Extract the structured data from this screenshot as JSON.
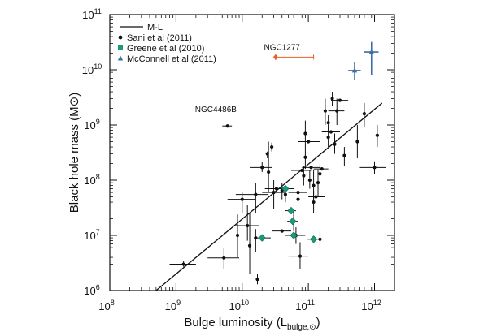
{
  "chart_data": {
    "type": "scatter",
    "xscale": "log",
    "yscale": "log",
    "xlim": [
      100000000,
      2000000000000
    ],
    "ylim": [
      1000000,
      100000000000
    ],
    "x_major_ticks": [
      {
        "value": 100000000,
        "base": "10",
        "exp": "8"
      },
      {
        "value": 1000000000,
        "base": "10",
        "exp": "9"
      },
      {
        "value": 10000000000,
        "base": "10",
        "exp": "10"
      },
      {
        "value": 100000000000,
        "base": "10",
        "exp": "11"
      },
      {
        "value": 1000000000000,
        "base": "10",
        "exp": "12"
      }
    ],
    "y_major_ticks": [
      {
        "value": 1000000,
        "base": "10",
        "exp": "6"
      },
      {
        "value": 10000000,
        "base": "10",
        "exp": "7"
      },
      {
        "value": 100000000,
        "base": "10",
        "exp": "8"
      },
      {
        "value": 1000000000,
        "base": "10",
        "exp": "9"
      },
      {
        "value": 10000000000,
        "base": "10",
        "exp": "10"
      },
      {
        "value": 100000000000,
        "base": "10",
        "exp": "11"
      }
    ],
    "xlabel": {
      "main": "Bulge luminosity (L",
      "sub": "bulge,⊙",
      "close": ")"
    },
    "ylabel": "Black hole mass (M⊙)",
    "legend_position": "top-left",
    "legend": [
      {
        "label": "M-L",
        "symbol": "line",
        "color": "#111111"
      },
      {
        "label": "Sani et al (2011)",
        "symbol": "dot",
        "color": "#111111"
      },
      {
        "label": "Greene et al (2010)",
        "symbol": "square",
        "color": "#1a9a7a"
      },
      {
        "label": "McConnell et al (2011)",
        "symbol": "triangle",
        "color": "#3b6ea5"
      }
    ],
    "fit_line": {
      "name": "M-L",
      "x": [
        500000000,
        1300000000000
      ],
      "y": [
        1000000,
        2500000000
      ]
    },
    "annotations": [
      {
        "text": "NGC1277",
        "x": 40000000000,
        "y": 20000000000
      },
      {
        "text": "NGC4486B",
        "x": 4000000000,
        "y": 1500000000
      }
    ],
    "series": [
      {
        "name": "Sani et al (2011)",
        "marker": "dot",
        "color": "#111111",
        "points": [
          {
            "x": 1300000000,
            "y": 3000000,
            "xlo": 800000000,
            "xhi": 2000000000,
            "ylo": 2700000,
            "yhi": 3400000
          },
          {
            "x": 5300000000,
            "y": 3900000,
            "xlo": 3000000000,
            "xhi": 9000000000,
            "ylo": 2500000,
            "yhi": 6000000
          },
          {
            "x": 6000000000,
            "y": 960000000,
            "xlo": 5000000000,
            "xhi": 7000000000,
            "ylo": 900000000,
            "yhi": 1020000000
          },
          {
            "x": 10000000000,
            "y": 45000000,
            "xlo": 6000000000,
            "xhi": 16000000000,
            "ylo": 25000000,
            "yhi": 60000000
          },
          {
            "x": 12000000000,
            "y": 15000000,
            "xlo": 8000000000,
            "xhi": 18000000000,
            "ylo": 8000000,
            "yhi": 35000000
          },
          {
            "x": 8500000000,
            "y": 10000000,
            "ylo": 4000000,
            "yhi": 24000000
          },
          {
            "x": 13000000000,
            "y": 6500000,
            "ylo": 2000000,
            "yhi": 25000000
          },
          {
            "x": 16000000000,
            "y": 9000000,
            "ylo": 5000000,
            "yhi": 13000000
          },
          {
            "x": 17000000000,
            "y": 1600000,
            "ylo": 1300000,
            "yhi": 2000000
          },
          {
            "x": 16000000000,
            "y": 55000000,
            "xlo": 8000000000,
            "xhi": 25000000000,
            "ylo": 25000000,
            "yhi": 90000000
          },
          {
            "x": 20000000000,
            "y": 170000000,
            "xlo": 13000000000,
            "xhi": 28000000000,
            "ylo": 140000000,
            "yhi": 210000000
          },
          {
            "x": 25000000000,
            "y": 140000000,
            "ylo": 60000000,
            "yhi": 500000000
          },
          {
            "x": 24000000000,
            "y": 300000000,
            "ylo": 250000000,
            "yhi": 330000000
          },
          {
            "x": 28000000000,
            "y": 400000000,
            "ylo": 330000000,
            "yhi": 480000000
          },
          {
            "x": 30000000000,
            "y": 60000000,
            "xlo": 20000000000,
            "xhi": 45000000000,
            "ylo": 30000000,
            "yhi": 100000000
          },
          {
            "x": 33000000000,
            "y": 70000000,
            "xlo": 22000000000,
            "xhi": 45000000000
          },
          {
            "x": 40000000000,
            "y": 65000000,
            "ylo": 45000000,
            "yhi": 90000000
          },
          {
            "x": 45000000000,
            "y": 55000000,
            "ylo": 40000000,
            "yhi": 75000000
          },
          {
            "x": 40000000000,
            "y": 12000000,
            "xlo": 28000000000,
            "xhi": 55000000000
          },
          {
            "x": 60000000000,
            "y": 18000000,
            "ylo": 12000000,
            "yhi": 28000000
          },
          {
            "x": 65000000000,
            "y": 10000000,
            "xlo": 45000000000,
            "xhi": 90000000000,
            "ylo": 7000000,
            "yhi": 14000000
          },
          {
            "x": 70000000000,
            "y": 45000000,
            "ylo": 30000000,
            "yhi": 70000000
          },
          {
            "x": 70000000000,
            "y": 60000000,
            "xlo": 50000000000,
            "xhi": 95000000000
          },
          {
            "x": 75000000000,
            "y": 4200000,
            "xlo": 50000000000,
            "xhi": 100000000000,
            "ylo": 2500000,
            "yhi": 7500000
          },
          {
            "x": 80000000000,
            "y": 150000000,
            "xlo": 55000000000,
            "xhi": 110000000000
          },
          {
            "x": 85000000000,
            "y": 120000000,
            "ylo": 80000000,
            "yhi": 180000000
          },
          {
            "x": 90000000000,
            "y": 260000000,
            "ylo": 160000000,
            "yhi": 400000000
          },
          {
            "x": 90000000000,
            "y": 700000000,
            "ylo": 400000000,
            "yhi": 1200000000
          },
          {
            "x": 100000000000,
            "y": 500000000,
            "xlo": 70000000000,
            "xhi": 150000000000
          },
          {
            "x": 105000000000,
            "y": 100000000,
            "ylo": 70000000,
            "yhi": 150000000
          },
          {
            "x": 110000000000,
            "y": 170000000,
            "xlo": 80000000000,
            "xhi": 150000000000
          },
          {
            "x": 120000000000,
            "y": 80000000,
            "ylo": 45000000,
            "yhi": 150000000
          },
          {
            "x": 120000000000,
            "y": 40000000,
            "ylo": 25000000,
            "yhi": 65000000
          },
          {
            "x": 130000000000,
            "y": 50000000,
            "xlo": 100000000000,
            "xhi": 180000000000
          },
          {
            "x": 140000000000,
            "y": 90000000,
            "ylo": 50000000,
            "yhi": 150000000
          },
          {
            "x": 150000000000,
            "y": 8500000,
            "ylo": 6000000,
            "yhi": 12000000
          },
          {
            "x": 150000000000,
            "y": 130000000,
            "ylo": 90000000,
            "yhi": 200000000
          },
          {
            "x": 160000000000,
            "y": 160000000,
            "xlo": 120000000000,
            "xhi": 200000000000
          },
          {
            "x": 180000000000,
            "y": 1800000000,
            "ylo": 1000000000,
            "yhi": 3000000000
          },
          {
            "x": 200000000000,
            "y": 600000000,
            "ylo": 400000000,
            "yhi": 900000000
          },
          {
            "x": 200000000000,
            "y": 1100000000,
            "ylo": 800000000,
            "yhi": 1500000000
          },
          {
            "x": 220000000000,
            "y": 750000000,
            "xlo": 160000000000,
            "xhi": 300000000000
          },
          {
            "x": 230000000000,
            "y": 3000000000,
            "ylo": 2200000000,
            "yhi": 4000000000
          },
          {
            "x": 250000000000,
            "y": 450000000,
            "ylo": 300000000,
            "yhi": 700000000
          },
          {
            "x": 270000000000,
            "y": 1800000000,
            "xlo": 200000000000,
            "xhi": 350000000000,
            "ylo": 1000000000,
            "yhi": 3000000000
          },
          {
            "x": 300000000000,
            "y": 2800000000,
            "xlo": 220000000000,
            "xhi": 400000000000
          },
          {
            "x": 350000000000,
            "y": 280000000,
            "ylo": 180000000,
            "yhi": 400000000
          },
          {
            "x": 550000000000,
            "y": 500000000,
            "ylo": 250000000,
            "yhi": 1000000000
          },
          {
            "x": 700000000000,
            "y": 1600000000,
            "ylo": 900000000,
            "yhi": 2500000000
          },
          {
            "x": 1000000000000,
            "y": 170000000,
            "xlo": 600000000000,
            "xhi": 1500000000000,
            "ylo": 130000000,
            "yhi": 220000000
          },
          {
            "x": 1100000000000,
            "y": 650000000,
            "ylo": 400000000,
            "yhi": 1000000000
          }
        ]
      },
      {
        "name": "Greene et al (2010)",
        "marker": "square",
        "color": "#1a9a7a",
        "points": [
          {
            "x": 20000000000,
            "y": 9000000,
            "xlo": 15000000000,
            "xhi": 27000000000
          },
          {
            "x": 45000000000,
            "y": 70000000,
            "xlo": 32000000000,
            "xhi": 60000000000
          },
          {
            "x": 55000000000,
            "y": 28000000,
            "xlo": 45000000000,
            "xhi": 65000000000
          },
          {
            "x": 58000000000,
            "y": 18000000,
            "xlo": 48000000000,
            "xhi": 70000000000
          },
          {
            "x": 60000000000,
            "y": 10000000,
            "xlo": 50000000000,
            "xhi": 72000000000
          },
          {
            "x": 120000000000,
            "y": 8500000,
            "xlo": 95000000000,
            "xhi": 150000000000
          }
        ]
      },
      {
        "name": "McConnell et al (2011)",
        "marker": "triangle",
        "color": "#3b6ea5",
        "points": [
          {
            "x": 500000000000,
            "y": 9700000000,
            "xlo": 400000000000,
            "xhi": 620000000000,
            "ylo": 6500000000,
            "yhi": 14000000000
          },
          {
            "x": 900000000000,
            "y": 21000000000,
            "xlo": 700000000000,
            "xhi": 1150000000000,
            "ylo": 8000000000,
            "yhi": 32000000000
          }
        ]
      },
      {
        "name": "NGC1277",
        "marker": "diamond",
        "color": "#e8602c",
        "points": [
          {
            "x": 32000000000,
            "y": 17000000000,
            "xlo": 30000000000,
            "xhi": 120000000000,
            "ylo": 15000000000,
            "yhi": 19000000000
          }
        ]
      }
    ]
  }
}
